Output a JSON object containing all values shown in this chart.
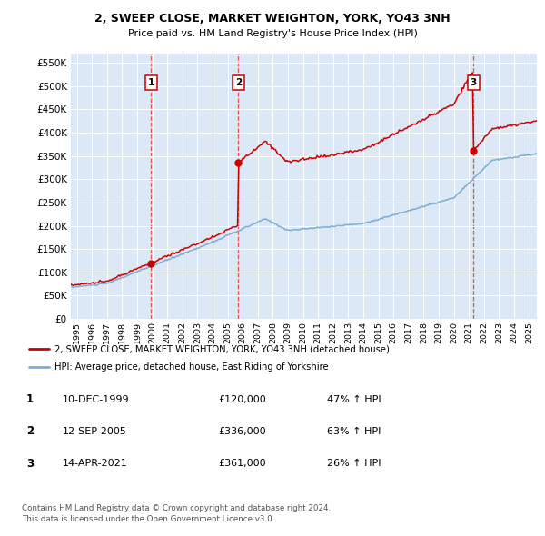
{
  "title_line1": "2, SWEEP CLOSE, MARKET WEIGHTON, YORK, YO43 3NH",
  "title_line2": "Price paid vs. HM Land Registry's House Price Index (HPI)",
  "ytick_values": [
    0,
    50000,
    100000,
    150000,
    200000,
    250000,
    300000,
    350000,
    400000,
    450000,
    500000,
    550000
  ],
  "xlim": [
    1994.6,
    2025.5
  ],
  "ylim": [
    0,
    570000
  ],
  "sale_year_nums": [
    1999.917,
    2005.708,
    2021.292
  ],
  "sale_prices": [
    120000,
    336000,
    361000
  ],
  "sale_labels": [
    "1",
    "2",
    "3"
  ],
  "legend_red": "2, SWEEP CLOSE, MARKET WEIGHTON, YORK, YO43 3NH (detached house)",
  "legend_blue": "HPI: Average price, detached house, East Riding of Yorkshire",
  "table_rows": [
    [
      "1",
      "10-DEC-1999",
      "£120,000",
      "47% ↑ HPI"
    ],
    [
      "2",
      "12-SEP-2005",
      "£336,000",
      "63% ↑ HPI"
    ],
    [
      "3",
      "14-APR-2021",
      "£361,000",
      "26% ↑ HPI"
    ]
  ],
  "footnote1": "Contains HM Land Registry data © Crown copyright and database right 2024.",
  "footnote2": "This data is licensed under the Open Government Licence v3.0.",
  "plot_bg": "#dce8f5",
  "red_color": "#cc0000",
  "blue_color": "#7aaed4",
  "dashed_color": "#ee3333"
}
